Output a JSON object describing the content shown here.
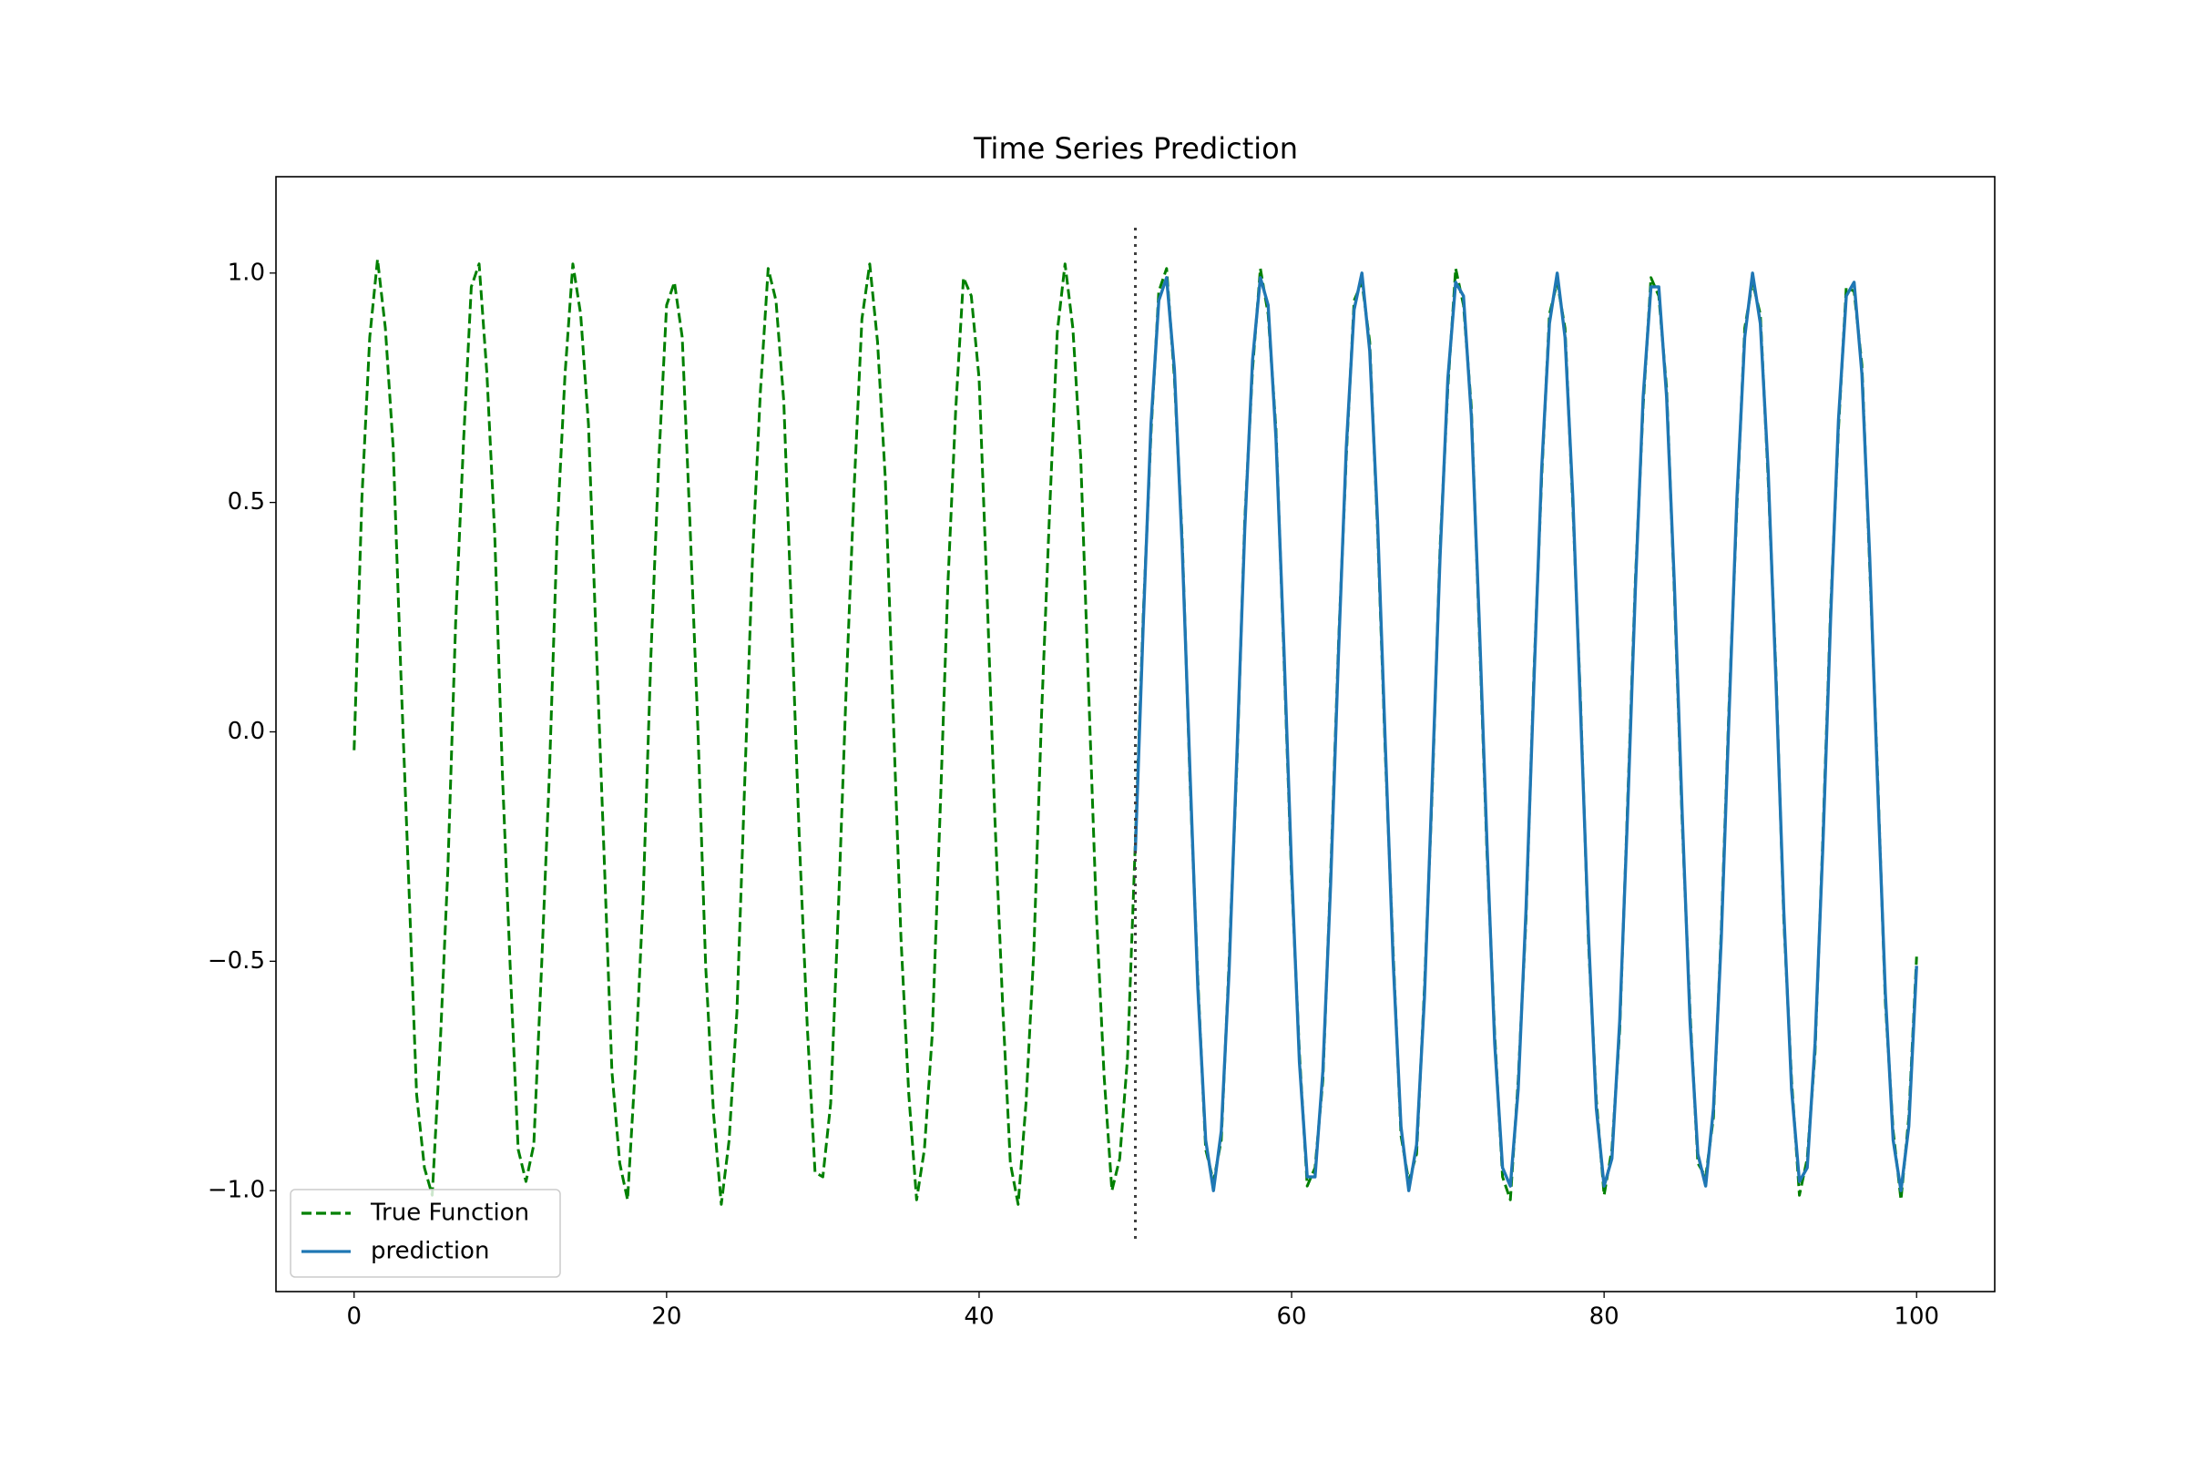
{
  "chart_data": {
    "type": "line",
    "title": "Time Series Prediction",
    "x": [
      0,
      0.5,
      1,
      1.5,
      2,
      2.5,
      3,
      3.5,
      4,
      4.5,
      5,
      5.5,
      6,
      6.5,
      7,
      7.5,
      8,
      8.5,
      9,
      9.5,
      10,
      10.5,
      11,
      11.5,
      12,
      12.5,
      13,
      13.5,
      14,
      14.5,
      15,
      15.5,
      16,
      16.5,
      17,
      17.5,
      18,
      18.5,
      19,
      19.5,
      20,
      20.5,
      21,
      21.5,
      22,
      22.5,
      23,
      23.5,
      24,
      24.5,
      25,
      25.5,
      26,
      26.5,
      27,
      27.5,
      28,
      28.5,
      29,
      29.5,
      30,
      30.5,
      31,
      31.5,
      32,
      32.5,
      33,
      33.5,
      34,
      34.5,
      35,
      35.5,
      36,
      36.5,
      37,
      37.5,
      38,
      38.5,
      39,
      39.5,
      40,
      40.5,
      41,
      41.5,
      42,
      42.5,
      43,
      43.5,
      44,
      44.5,
      45,
      45.5,
      46,
      46.5,
      47,
      47.5,
      48,
      48.5,
      49,
      49.5,
      50,
      50.5,
      51,
      51.5,
      52,
      52.5,
      53,
      53.5,
      54,
      54.5,
      55,
      55.5,
      56,
      56.5,
      57,
      57.5,
      58,
      58.5,
      59,
      59.5,
      60,
      60.5,
      61,
      61.5,
      62,
      62.5,
      63,
      63.5,
      64,
      64.5,
      65,
      65.5,
      66,
      66.5,
      67,
      67.5,
      68,
      68.5,
      69,
      69.5,
      70,
      70.5,
      71,
      71.5,
      72,
      72.5,
      73,
      73.5,
      74,
      74.5,
      75,
      75.5,
      76,
      76.5,
      77,
      77.5,
      78,
      78.5,
      79,
      79.5,
      80,
      80.5,
      81,
      81.5,
      82,
      82.5,
      83,
      83.5,
      84,
      84.5,
      85,
      85.5,
      86,
      86.5,
      87,
      87.5,
      88,
      88.5,
      89,
      89.5,
      90,
      90.5,
      91,
      91.5,
      92,
      92.5,
      93,
      93.5,
      94,
      94.5,
      95,
      95.5,
      96,
      96.5,
      97,
      97.5,
      98,
      98.5,
      99,
      99.5,
      100
    ],
    "series": [
      {
        "name": "True Function",
        "color": "#008000",
        "dashed": true,
        "values": [
          -0.04,
          0.51,
          0.86,
          1.03,
          0.88,
          0.62,
          0.12,
          -0.33,
          -0.79,
          -0.95,
          -1.01,
          -0.69,
          -0.3,
          0.24,
          0.63,
          0.97,
          1.02,
          0.78,
          0.43,
          -0.1,
          -0.52,
          -0.91,
          -0.98,
          -0.9,
          -0.51,
          -0.09,
          0.44,
          0.78,
          1.02,
          0.91,
          0.67,
          0.19,
          -0.27,
          -0.74,
          -0.94,
          -1.02,
          -0.73,
          -0.36,
          0.17,
          0.59,
          0.93,
          0.98,
          0.86,
          0.45,
          0.01,
          -0.51,
          -0.83,
          -1.03,
          -0.89,
          -0.61,
          -0.11,
          0.38,
          0.74,
          1.01,
          0.94,
          0.72,
          0.25,
          -0.24,
          -0.64,
          -0.96,
          -0.97,
          -0.81,
          -0.38,
          0.1,
          0.53,
          0.9,
          1.02,
          0.85,
          0.55,
          0.04,
          -0.45,
          -0.79,
          -1.02,
          -0.91,
          -0.66,
          -0.18,
          0.32,
          0.7,
          0.99,
          0.95,
          0.77,
          0.31,
          -0.18,
          -0.59,
          -0.94,
          -1.03,
          -0.81,
          -0.48,
          0.04,
          0.47,
          0.87,
          1.02,
          0.88,
          0.6,
          0.1,
          -0.39,
          -0.75,
          -1.0,
          -0.93,
          -0.71,
          -0.24,
          0.25,
          0.65,
          0.96,
          1.01,
          0.77,
          0.42,
          -0.11,
          -0.54,
          -0.91,
          -0.98,
          -0.89,
          -0.5,
          -0.07,
          0.46,
          0.79,
          1.01,
          0.91,
          0.66,
          0.17,
          -0.32,
          -0.7,
          -0.99,
          -0.95,
          -0.76,
          -0.31,
          0.19,
          0.6,
          0.94,
          0.98,
          0.85,
          0.44,
          -0.05,
          -0.48,
          -0.88,
          -0.98,
          -0.92,
          -0.56,
          -0.13,
          0.4,
          0.75,
          1.01,
          0.93,
          0.71,
          0.23,
          -0.26,
          -0.66,
          -0.97,
          -1.02,
          -0.76,
          -0.41,
          0.12,
          0.55,
          0.91,
          0.98,
          0.88,
          0.49,
          0.06,
          -0.46,
          -0.8,
          -1.01,
          -0.91,
          -0.65,
          -0.16,
          0.33,
          0.71,
          0.99,
          0.95,
          0.75,
          0.3,
          -0.2,
          -0.61,
          -0.94,
          -0.97,
          -0.84,
          -0.43,
          0.06,
          0.49,
          0.88,
          0.98,
          0.91,
          0.55,
          0.13,
          -0.41,
          -0.76,
          -1.01,
          -0.93,
          -0.7,
          -0.23,
          0.27,
          0.66,
          0.97,
          0.96,
          0.8,
          0.36,
          -0.09,
          -0.59,
          -0.87,
          -1.02,
          -0.84,
          -0.49
        ]
      },
      {
        "name": "prediction",
        "color": "#1f77b4",
        "dashed": false,
        "values": [
          null,
          null,
          null,
          null,
          null,
          null,
          null,
          null,
          null,
          null,
          null,
          null,
          null,
          null,
          null,
          null,
          null,
          null,
          null,
          null,
          null,
          null,
          null,
          null,
          null,
          null,
          null,
          null,
          null,
          null,
          null,
          null,
          null,
          null,
          null,
          null,
          null,
          null,
          null,
          null,
          null,
          null,
          null,
          null,
          null,
          null,
          null,
          null,
          null,
          null,
          null,
          null,
          null,
          null,
          null,
          null,
          null,
          null,
          null,
          null,
          null,
          null,
          null,
          null,
          null,
          null,
          null,
          null,
          null,
          null,
          null,
          null,
          null,
          null,
          null,
          null,
          null,
          null,
          null,
          null,
          null,
          null,
          null,
          null,
          null,
          null,
          null,
          null,
          null,
          null,
          null,
          null,
          null,
          null,
          null,
          null,
          null,
          null,
          null,
          null,
          -0.26,
          0.23,
          0.67,
          0.94,
          0.99,
          0.79,
          0.4,
          -0.09,
          -0.56,
          -0.89,
          -1.0,
          -0.87,
          -0.52,
          -0.05,
          0.44,
          0.81,
          0.99,
          0.93,
          0.64,
          0.19,
          -0.3,
          -0.72,
          -0.97,
          -0.97,
          -0.74,
          -0.33,
          0.17,
          0.62,
          0.92,
          1.0,
          0.83,
          0.46,
          -0.03,
          -0.5,
          -0.86,
          -1.0,
          -0.9,
          -0.58,
          -0.11,
          0.38,
          0.77,
          0.98,
          0.95,
          0.69,
          0.25,
          -0.24,
          -0.68,
          -0.95,
          -0.99,
          -0.78,
          -0.39,
          0.1,
          0.57,
          0.89,
          1.0,
          0.86,
          0.51,
          0.04,
          -0.44,
          -0.82,
          -0.99,
          -0.93,
          -0.63,
          -0.18,
          0.31,
          0.73,
          0.97,
          0.97,
          0.73,
          0.32,
          -0.18,
          -0.63,
          -0.92,
          -0.99,
          -0.82,
          -0.45,
          0.04,
          0.51,
          0.86,
          1.0,
          0.89,
          0.57,
          0.11,
          -0.39,
          -0.78,
          -0.98,
          -0.95,
          -0.68,
          -0.25,
          0.25,
          0.68,
          0.95,
          0.98,
          0.78,
          0.38,
          -0.11,
          -0.57,
          -0.89,
          -1.0,
          -0.86,
          -0.51
        ]
      }
    ],
    "vline": 50,
    "vline_color": "#404040",
    "xlim": [
      -5,
      105
    ],
    "ylim": [
      -1.22,
      1.21
    ],
    "xticks": [
      0,
      20,
      40,
      60,
      80,
      100
    ],
    "yticks": [
      {
        "value": -1,
        "label": "−1.0"
      },
      {
        "value": -0.5,
        "label": "−0.5"
      },
      {
        "value": 0,
        "label": "0.0"
      },
      0.5,
      {
        "value": 1,
        "label": "1.0"
      }
    ],
    "grid": false,
    "legend": "lower left"
  }
}
